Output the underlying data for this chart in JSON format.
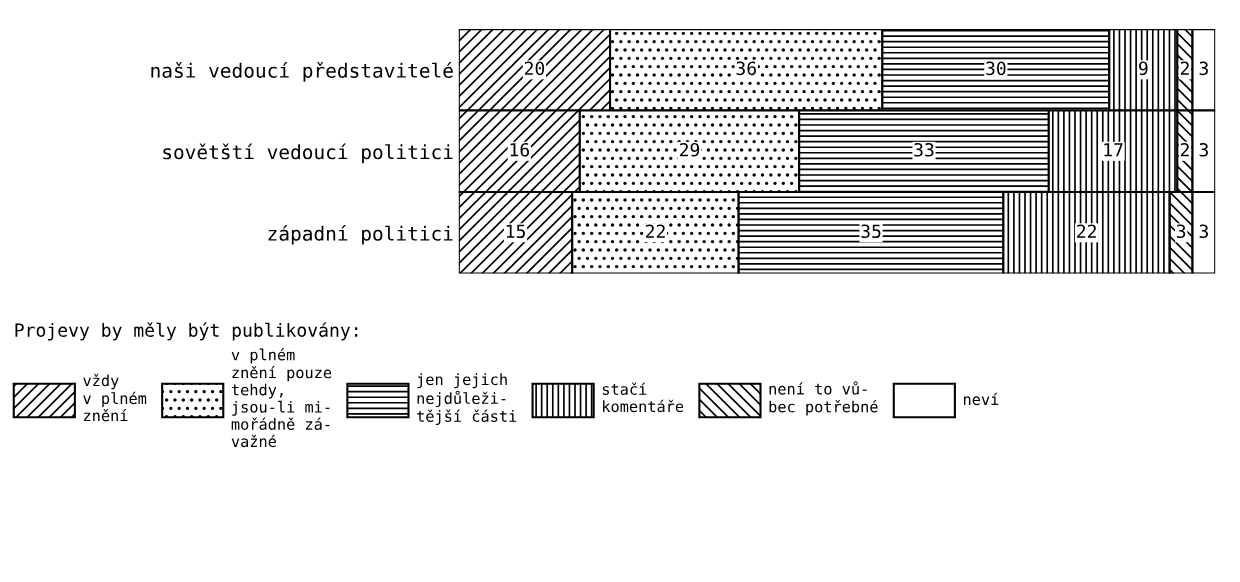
{
  "chart_data": {
    "type": "bar",
    "orientation": "horizontal",
    "stacked": true,
    "xlim": [
      0,
      100
    ],
    "tick_labels": false,
    "data_labels": true,
    "legend": "bottom",
    "legend_title": "Projevy by měly být publikovány:",
    "categories": [
      "naši vedoucí představitelé",
      "sovětští vedoucí politici",
      "západní politici"
    ],
    "series": [
      {
        "name": "vždy\nv plném\nznění",
        "color": "#000000",
        "values": [
          20,
          16,
          15
        ]
      },
      {
        "name": "v plném\nznění pouze\ntehdy,\njsou-li mi-\nmořádně zá-\nvažné",
        "color": "#000000",
        "values": [
          36,
          29,
          22
        ]
      },
      {
        "name": "jen jejich\nnejdůleži-\ntější části",
        "color": "#000000",
        "values": [
          30,
          33,
          35
        ]
      },
      {
        "name": "stačí\nkomentáře",
        "color": "#000000",
        "values": [
          9,
          17,
          22
        ]
      },
      {
        "name": "není to vů-\nbec potřebné",
        "color": "#000000",
        "values": [
          2,
          2,
          3
        ]
      },
      {
        "name": "neví",
        "color": "#000000",
        "values": [
          3,
          3,
          3
        ]
      }
    ]
  }
}
